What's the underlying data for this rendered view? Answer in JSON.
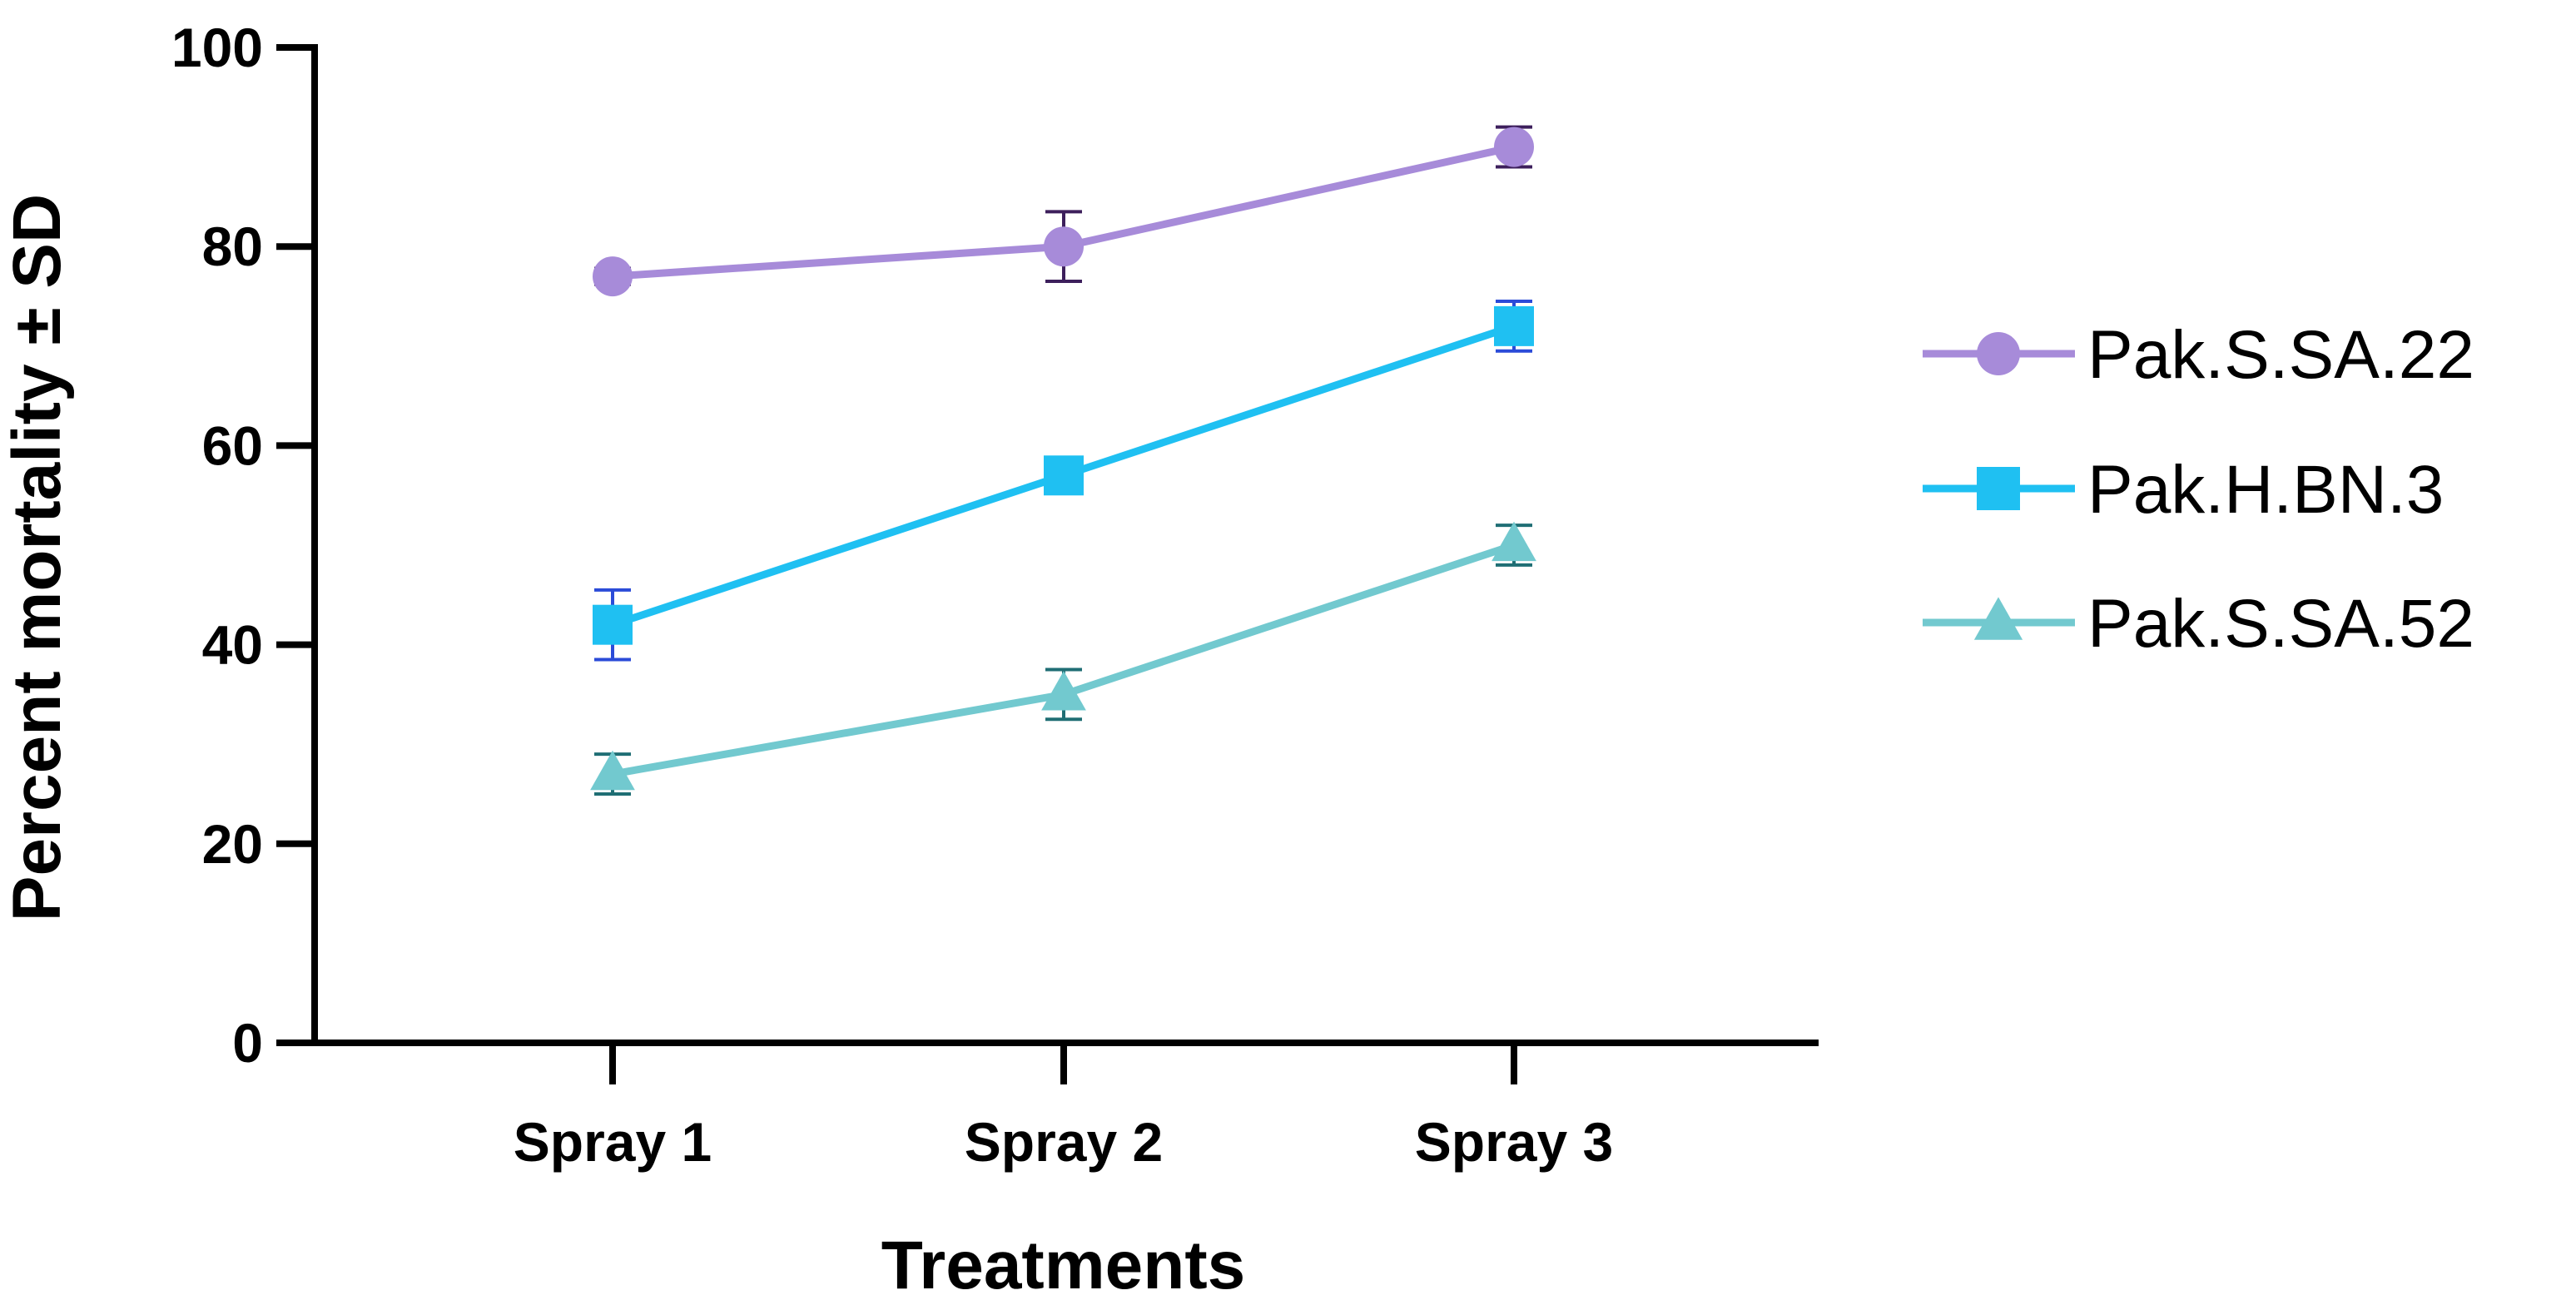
{
  "chart_data": {
    "type": "line",
    "title": "",
    "xlabel": "Treatments",
    "ylabel": "Percent mortality ± SD",
    "categories": [
      "Spray 1",
      "Spray 2",
      "Spray 3"
    ],
    "ylim": [
      0,
      100
    ],
    "yticks": [
      0,
      20,
      40,
      60,
      80,
      100
    ],
    "grid": false,
    "legend_position": "right",
    "series": [
      {
        "name": "Pak.S.SA.22",
        "marker": "circle",
        "color": "#A78BD9",
        "error_color": "#3D1F5C",
        "values": [
          77,
          80,
          90
        ],
        "sd": [
          0.8,
          3.5,
          2
        ]
      },
      {
        "name": "Pak.H.BN.3",
        "marker": "square",
        "color": "#1FC0F2",
        "error_color": "#2B4BD8",
        "values": [
          42,
          57,
          72
        ],
        "sd": [
          3.5,
          1.5,
          2.5
        ]
      },
      {
        "name": "Pak.S.SA.52",
        "marker": "triangle",
        "color": "#72C9CF",
        "error_color": "#1F6E74",
        "values": [
          27,
          35,
          50
        ],
        "sd": [
          2,
          2.5,
          2
        ]
      }
    ]
  }
}
